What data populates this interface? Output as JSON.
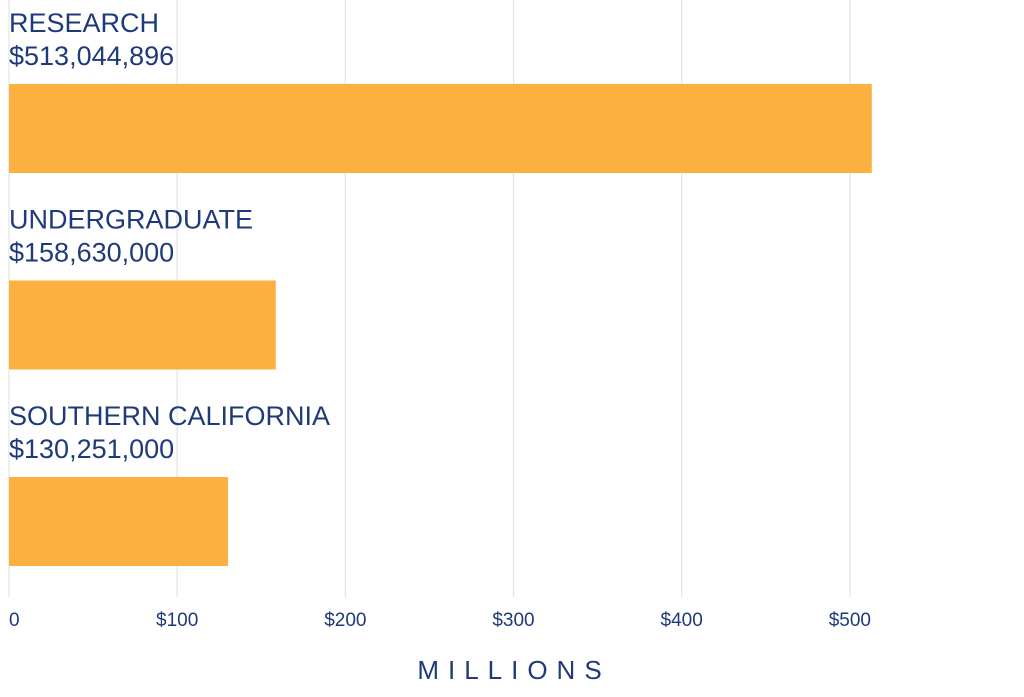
{
  "chart_data": {
    "type": "bar",
    "orientation": "horizontal",
    "categories": [
      "RESEARCH",
      "UNDERGRADUATE",
      "SOUTHERN CALIFORNIA"
    ],
    "values": [
      513.044896,
      158.63,
      130.251
    ],
    "value_labels": [
      "$513,044,896",
      "$158,630,000",
      "$130,251,000"
    ],
    "color": "#fbb040",
    "xlim": [
      0,
      600
    ],
    "xticks": [
      0,
      {
        "value": 100,
        "label": "$100"
      },
      {
        "value": 200,
        "label": "$200"
      },
      {
        "value": 300,
        "label": "$300"
      },
      {
        "value": 400,
        "label": "$400"
      },
      {
        "value": 500,
        "label": "$500"
      }
    ],
    "xlabel": "MILLIONS",
    "grid": true
  }
}
